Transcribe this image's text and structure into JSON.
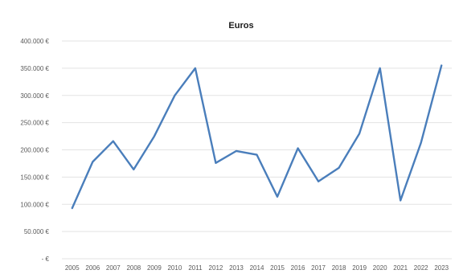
{
  "chart_data": {
    "type": "line",
    "title": "Euros",
    "xlabel": "",
    "ylabel": "",
    "categories": [
      "2005",
      "2006",
      "2007",
      "2008",
      "2009",
      "2010",
      "2011",
      "2012",
      "2013",
      "2014",
      "2015",
      "2016",
      "2017",
      "2018",
      "2019",
      "2020",
      "2021",
      "2022",
      "2023"
    ],
    "series": [
      {
        "values": [
          93000,
          178000,
          216000,
          164000,
          225000,
          300000,
          350000,
          176000,
          198000,
          191000,
          114000,
          203000,
          142000,
          167000,
          230000,
          350000,
          107000,
          213000,
          355000
        ],
        "color": "#4a7ebb"
      }
    ],
    "yticks": [
      "- €",
      "50.000 €",
      "100.000 €",
      "150.000 €",
      "200.000 €",
      "250.000 €",
      "300.000 €",
      "350.000 €",
      "400.000 €"
    ],
    "ylim": [
      0,
      400000
    ],
    "grid": true,
    "legend": "none"
  }
}
